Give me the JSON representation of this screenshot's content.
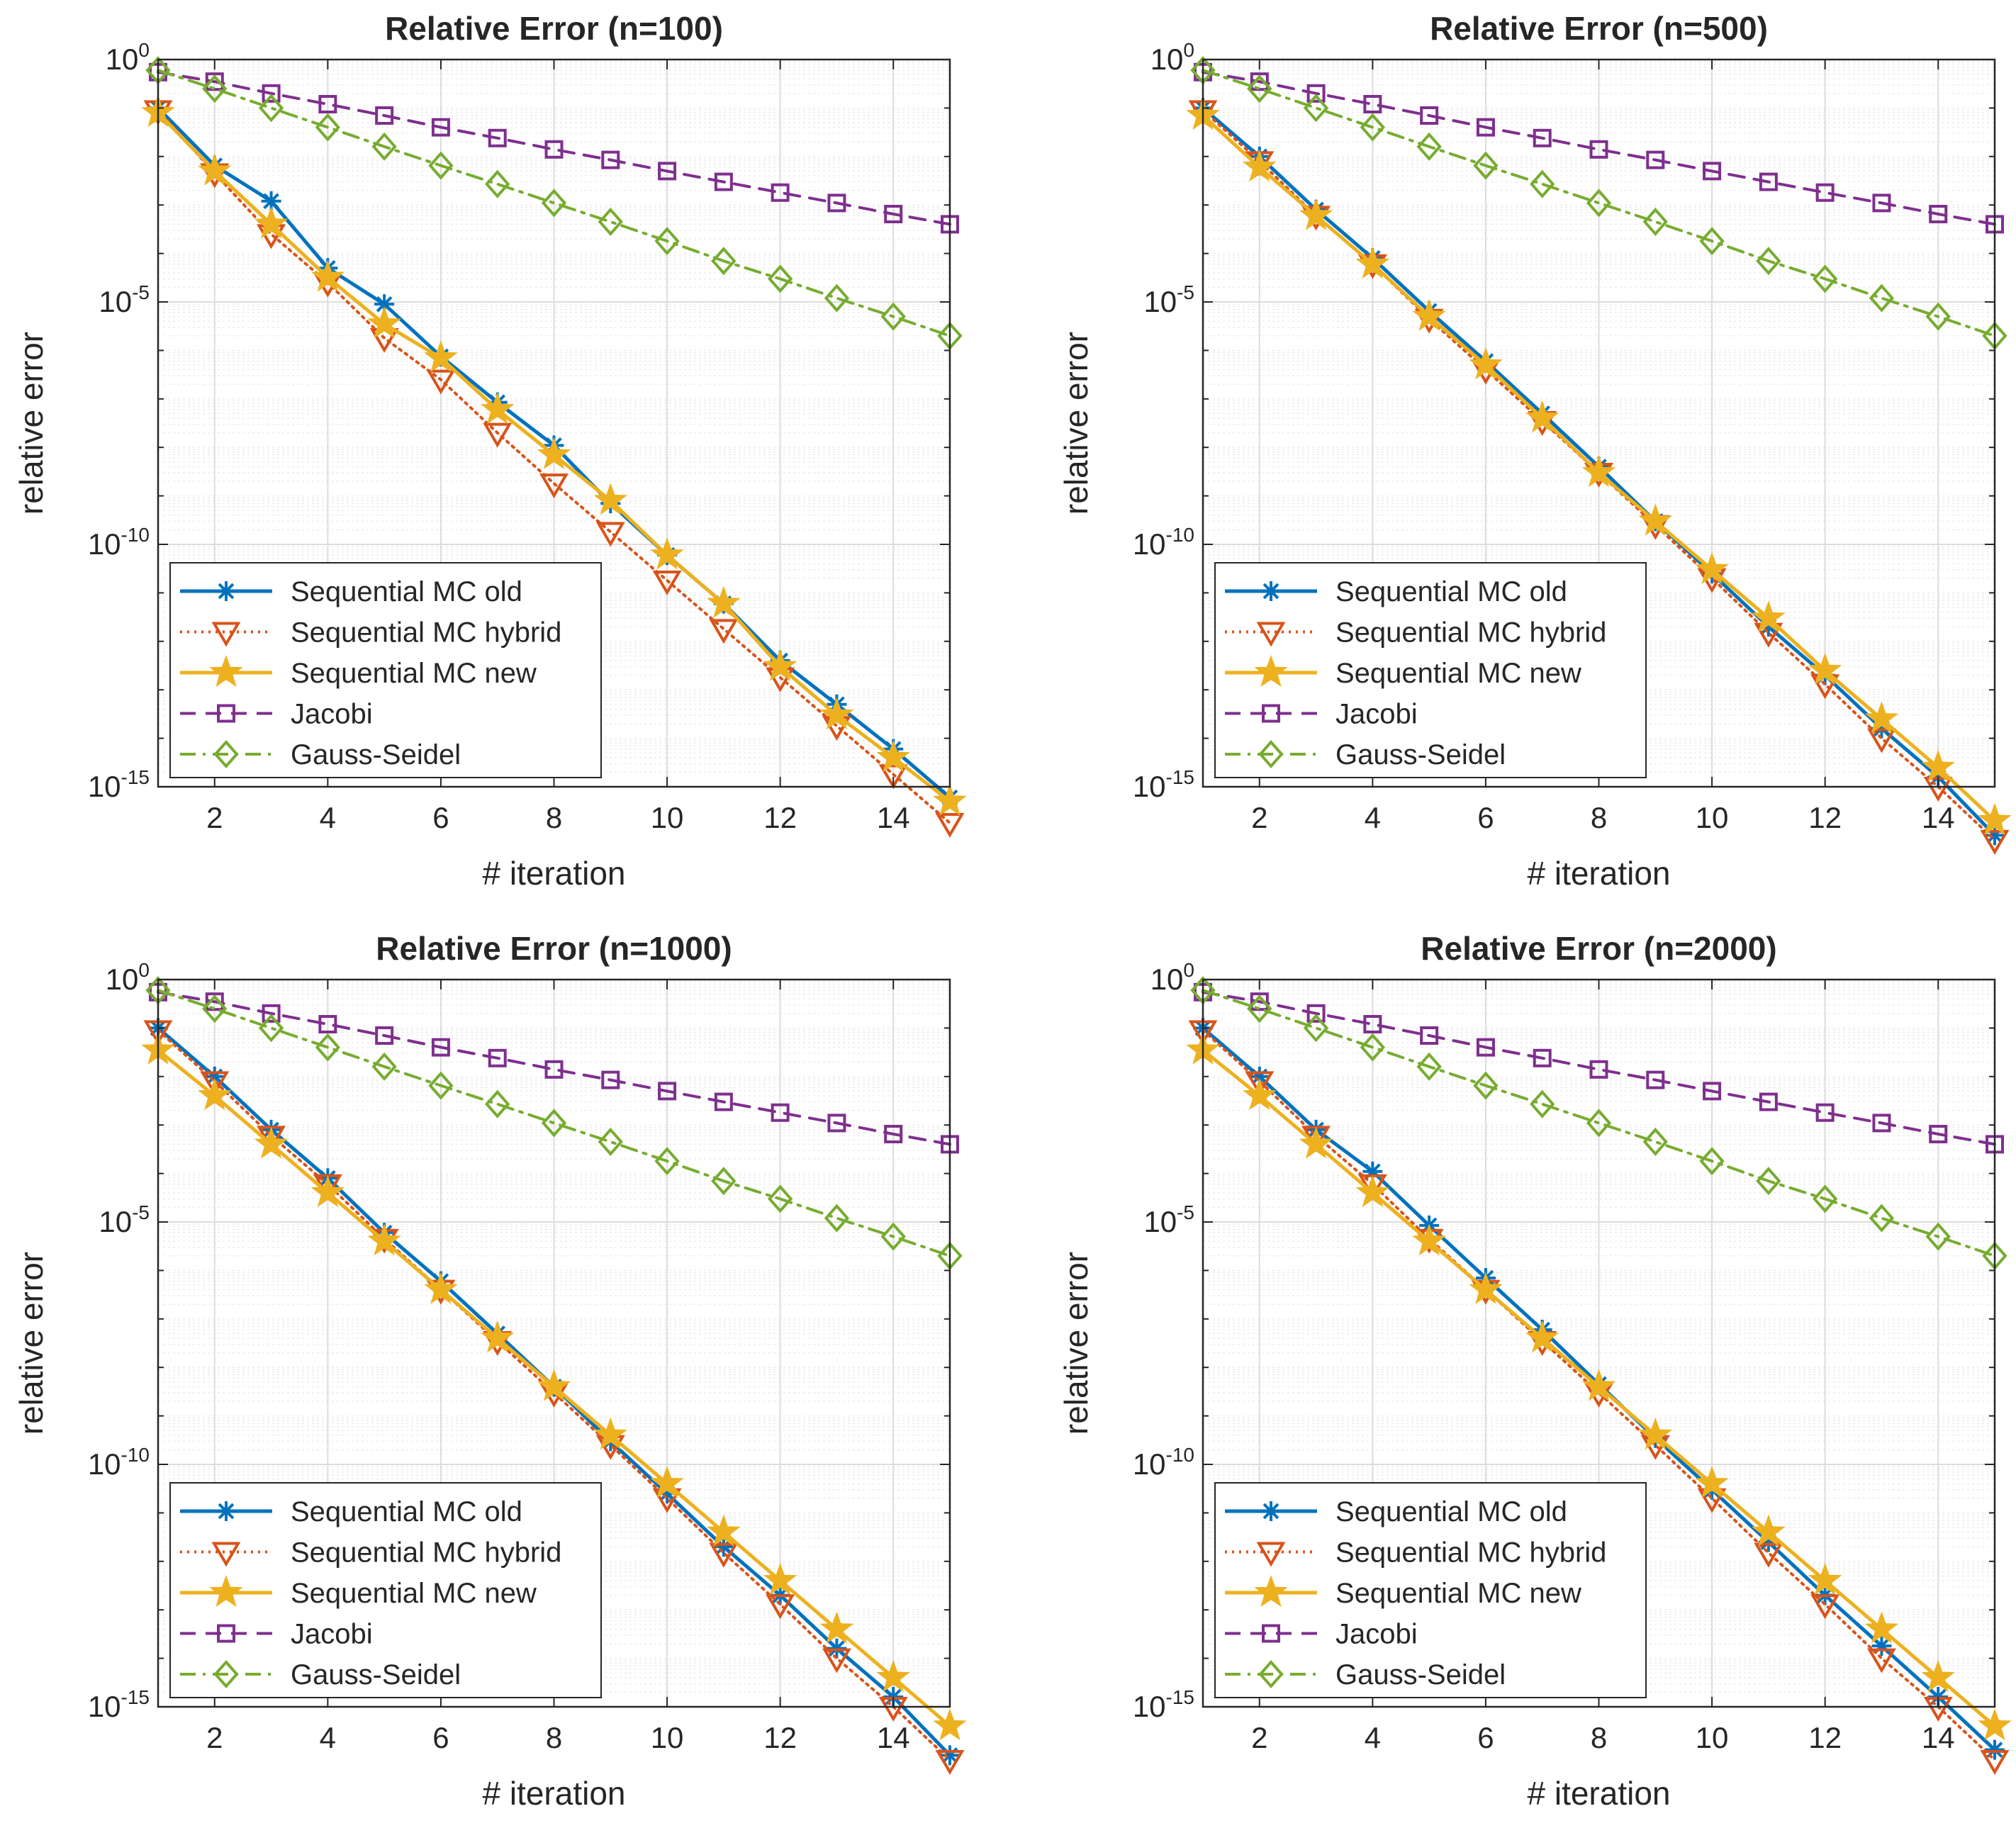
{
  "chart_data": [
    {
      "type": "line",
      "title": "Relative Error (n=100)",
      "xlabel": "# iteration",
      "ylabel": "relative error",
      "yscale": "log",
      "xlim": [
        1,
        15
      ],
      "ylim": [
        1e-15,
        1
      ],
      "xticks": [
        2,
        4,
        6,
        8,
        10,
        12,
        14
      ],
      "yticks": [
        {
          "base": "10",
          "exp": "0"
        },
        {
          "base": "10",
          "exp": "-5"
        },
        {
          "base": "10",
          "exp": "-10"
        },
        {
          "base": "10",
          "exp": "-15"
        }
      ],
      "grid": true,
      "legend_position": "bottom-left",
      "x": [
        1,
        2,
        3,
        4,
        5,
        6,
        7,
        8,
        9,
        10,
        11,
        12,
        13,
        14,
        15
      ],
      "series": [
        {
          "name": "Sequential MC old",
          "color": "#0072BD",
          "dash": "solid",
          "marker": "asterisk",
          "values": [
            0.1,
            0.0065,
            0.0012,
            5e-05,
            9e-06,
            7.5e-07,
            8.5e-08,
            1.1e-08,
            7e-10,
            6e-11,
            6e-12,
            4e-13,
            5e-14,
            6e-15,
            6e-16
          ]
        },
        {
          "name": "Sequential MC hybrid",
          "color": "#D95319",
          "dash": "dotted",
          "marker": "triangle-down",
          "values": [
            0.09,
            0.0045,
            0.00025,
            2.5e-05,
            1.8e-06,
            2.5e-07,
            2e-08,
            1.8e-09,
            1.8e-10,
            1.8e-11,
            1.8e-12,
            1.8e-13,
            1.8e-14,
            1.8e-15,
            1.8e-16
          ]
        },
        {
          "name": "Sequential MC new",
          "color": "#EDB120",
          "dash": "solid",
          "marker": "star",
          "values": [
            0.08,
            0.005,
            0.0004,
            3.2e-05,
            3.5e-06,
            7e-07,
            6e-08,
            7e-09,
            8e-10,
            6e-11,
            6e-12,
            3e-13,
            3e-14,
            4e-15,
            5e-16
          ]
        },
        {
          "name": "Jacobi",
          "color": "#7E2F8E",
          "dash": "dashed",
          "marker": "square",
          "values": [
            0.55,
            0.35,
            0.2,
            0.12,
            0.07,
            0.04,
            0.024,
            0.014,
            0.0085,
            0.005,
            0.003,
            0.0018,
            0.0011,
            0.00065,
            0.0004
          ]
        },
        {
          "name": "Gauss-Seidel",
          "color": "#77AC30",
          "dash": "dashdot",
          "marker": "diamond",
          "values": [
            0.6,
            0.25,
            0.1,
            0.04,
            0.016,
            0.0065,
            0.0027,
            0.0011,
            0.00045,
            0.00018,
            7e-05,
            3e-05,
            1.2e-05,
            5e-06,
            2e-06
          ]
        }
      ]
    },
    {
      "type": "line",
      "title": "Relative Error (n=500)",
      "xlabel": "# iteration",
      "ylabel": "relative error",
      "yscale": "log",
      "xlim": [
        1,
        15
      ],
      "ylim": [
        1e-15,
        1
      ],
      "xticks": [
        2,
        4,
        6,
        8,
        10,
        12,
        14
      ],
      "yticks": [
        {
          "base": "10",
          "exp": "0"
        },
        {
          "base": "10",
          "exp": "-5"
        },
        {
          "base": "10",
          "exp": "-10"
        },
        {
          "base": "10",
          "exp": "-15"
        }
      ],
      "grid": true,
      "legend_position": "bottom-left",
      "x": [
        1,
        2,
        3,
        4,
        5,
        6,
        7,
        8,
        9,
        10,
        11,
        12,
        13,
        14,
        15
      ],
      "series": [
        {
          "name": "Sequential MC old",
          "color": "#0072BD",
          "dash": "solid",
          "marker": "asterisk",
          "values": [
            0.1,
            0.01,
            0.0008,
            8e-05,
            6.5e-06,
            6e-07,
            5e-08,
            4e-09,
            3e-10,
            2.5e-11,
            2e-12,
            2e-13,
            1.6e-14,
            1.6e-15,
            1e-16
          ]
        },
        {
          "name": "Sequential MC hybrid",
          "color": "#D95319",
          "dash": "dotted",
          "marker": "triangle-down",
          "values": [
            0.09,
            0.008,
            0.0006,
            6e-05,
            4.5e-06,
            4e-07,
            3.5e-08,
            3e-09,
            2.5e-10,
            2e-11,
            1.5e-12,
            1.3e-13,
            1e-14,
            1e-15,
            8e-17
          ]
        },
        {
          "name": "Sequential MC new",
          "color": "#EDB120",
          "dash": "solid",
          "marker": "star",
          "values": [
            0.07,
            0.006,
            0.0006,
            6e-05,
            5e-06,
            5e-07,
            4e-08,
            3e-09,
            3e-10,
            3e-11,
            3e-12,
            2.5e-13,
            2.5e-14,
            2.5e-15,
            2e-16
          ]
        },
        {
          "name": "Jacobi",
          "color": "#7E2F8E",
          "dash": "dashed",
          "marker": "square",
          "values": [
            0.55,
            0.35,
            0.2,
            0.12,
            0.07,
            0.04,
            0.024,
            0.014,
            0.0085,
            0.005,
            0.003,
            0.0018,
            0.0011,
            0.00065,
            0.0004
          ]
        },
        {
          "name": "Gauss-Seidel",
          "color": "#77AC30",
          "dash": "dashdot",
          "marker": "diamond",
          "values": [
            0.6,
            0.25,
            0.1,
            0.04,
            0.016,
            0.0065,
            0.0027,
            0.0011,
            0.00045,
            0.00018,
            7e-05,
            3e-05,
            1.2e-05,
            5e-06,
            2e-06
          ]
        }
      ]
    },
    {
      "type": "line",
      "title": "Relative Error (n=1000)",
      "xlabel": "# iteration",
      "ylabel": "relative error",
      "yscale": "log",
      "xlim": [
        1,
        15
      ],
      "ylim": [
        1e-15,
        1
      ],
      "xticks": [
        2,
        4,
        6,
        8,
        10,
        12,
        14
      ],
      "yticks": [
        {
          "base": "10",
          "exp": "0"
        },
        {
          "base": "10",
          "exp": "-5"
        },
        {
          "base": "10",
          "exp": "-10"
        },
        {
          "base": "10",
          "exp": "-15"
        }
      ],
      "grid": true,
      "legend_position": "bottom-left",
      "x": [
        1,
        2,
        3,
        4,
        5,
        6,
        7,
        8,
        9,
        10,
        11,
        12,
        13,
        14,
        15
      ],
      "series": [
        {
          "name": "Sequential MC old",
          "color": "#0072BD",
          "dash": "solid",
          "marker": "asterisk",
          "values": [
            0.1,
            0.01,
            0.0008,
            8e-05,
            6e-06,
            6e-07,
            5e-08,
            4e-09,
            3e-10,
            2.5e-11,
            2e-12,
            2e-13,
            1.6e-14,
            1.6e-15,
            1e-16
          ]
        },
        {
          "name": "Sequential MC hybrid",
          "color": "#D95319",
          "dash": "dotted",
          "marker": "triangle-down",
          "values": [
            0.09,
            0.008,
            0.0006,
            6e-05,
            4.5e-06,
            4e-07,
            3.5e-08,
            3e-09,
            2.5e-10,
            2e-11,
            1.5e-12,
            1.3e-13,
            1e-14,
            1e-15,
            8e-17
          ]
        },
        {
          "name": "Sequential MC new",
          "color": "#EDB120",
          "dash": "solid",
          "marker": "star",
          "values": [
            0.035,
            0.004,
            0.0004,
            4e-05,
            4e-06,
            4e-07,
            4e-08,
            4e-09,
            4e-10,
            4e-11,
            4e-12,
            4e-13,
            4e-14,
            4e-15,
            4e-16
          ]
        },
        {
          "name": "Jacobi",
          "color": "#7E2F8E",
          "dash": "dashed",
          "marker": "square",
          "values": [
            0.55,
            0.35,
            0.2,
            0.12,
            0.07,
            0.04,
            0.024,
            0.014,
            0.0085,
            0.005,
            0.003,
            0.0018,
            0.0011,
            0.00065,
            0.0004
          ]
        },
        {
          "name": "Gauss-Seidel",
          "color": "#77AC30",
          "dash": "dashdot",
          "marker": "diamond",
          "values": [
            0.6,
            0.25,
            0.1,
            0.04,
            0.016,
            0.0065,
            0.0027,
            0.0011,
            0.00045,
            0.00018,
            7e-05,
            3e-05,
            1.2e-05,
            5e-06,
            2e-06
          ]
        }
      ]
    },
    {
      "type": "line",
      "title": "Relative Error (n=2000)",
      "xlabel": "# iteration",
      "ylabel": "relative error",
      "yscale": "log",
      "xlim": [
        1,
        15
      ],
      "ylim": [
        1e-15,
        1
      ],
      "xticks": [
        2,
        4,
        6,
        8,
        10,
        12,
        14
      ],
      "yticks": [
        {
          "base": "10",
          "exp": "0"
        },
        {
          "base": "10",
          "exp": "-5"
        },
        {
          "base": "10",
          "exp": "-10"
        },
        {
          "base": "10",
          "exp": "-15"
        }
      ],
      "grid": true,
      "legend_position": "bottom-left",
      "x": [
        1,
        2,
        3,
        4,
        5,
        6,
        7,
        8,
        9,
        10,
        11,
        12,
        13,
        14,
        15
      ],
      "series": [
        {
          "name": "Sequential MC old",
          "color": "#0072BD",
          "dash": "solid",
          "marker": "asterisk",
          "values": [
            0.1,
            0.01,
            0.0008,
            0.00011,
            8.5e-06,
            7e-07,
            6e-08,
            4.5e-09,
            3.5e-10,
            3e-11,
            2.5e-12,
            2e-13,
            1.8e-14,
            1.6e-15,
            1.3e-16
          ]
        },
        {
          "name": "Sequential MC hybrid",
          "color": "#D95319",
          "dash": "dotted",
          "marker": "triangle-down",
          "values": [
            0.09,
            0.008,
            0.0006,
            6e-05,
            4.5e-06,
            4e-07,
            3.5e-08,
            3e-09,
            2.5e-10,
            2e-11,
            1.5e-12,
            1.3e-13,
            1e-14,
            1e-15,
            8e-17
          ]
        },
        {
          "name": "Sequential MC new",
          "color": "#EDB120",
          "dash": "solid",
          "marker": "star",
          "values": [
            0.035,
            0.004,
            0.0004,
            4e-05,
            4e-06,
            4e-07,
            4e-08,
            4e-09,
            4e-10,
            4e-11,
            4e-12,
            4e-13,
            4e-14,
            4e-15,
            4e-16
          ]
        },
        {
          "name": "Jacobi",
          "color": "#7E2F8E",
          "dash": "dashed",
          "marker": "square",
          "values": [
            0.55,
            0.35,
            0.2,
            0.12,
            0.07,
            0.04,
            0.024,
            0.014,
            0.0085,
            0.005,
            0.003,
            0.0018,
            0.0011,
            0.00065,
            0.0004
          ]
        },
        {
          "name": "Gauss-Seidel",
          "color": "#77AC30",
          "dash": "dashdot",
          "marker": "diamond",
          "values": [
            0.6,
            0.25,
            0.1,
            0.04,
            0.016,
            0.0065,
            0.0027,
            0.0011,
            0.00045,
            0.00018,
            7e-05,
            3e-05,
            1.2e-05,
            5e-06,
            2e-06
          ]
        }
      ]
    }
  ]
}
